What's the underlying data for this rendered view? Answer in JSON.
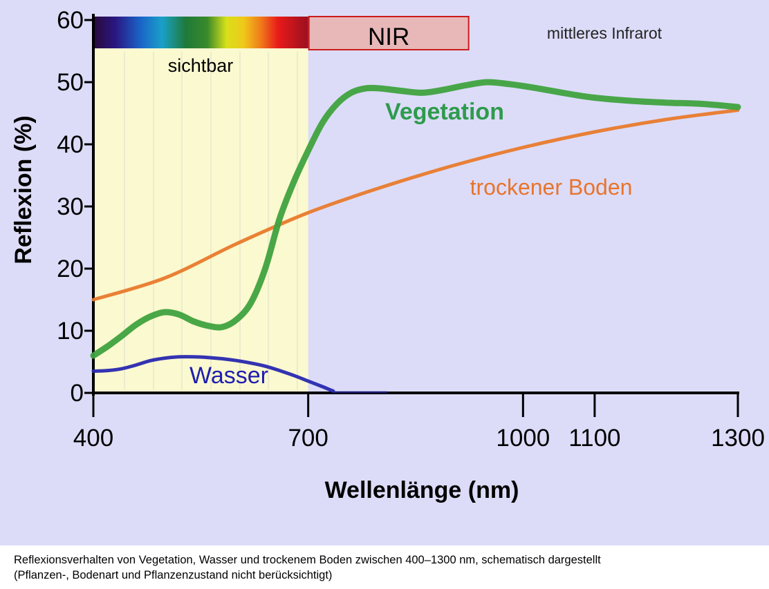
{
  "chart_data": {
    "type": "line",
    "xlabel": "Wellenlänge (nm)",
    "ylabel": "Reflexion (%)",
    "xlim": [
      400,
      1300
    ],
    "ylim": [
      0,
      60
    ],
    "x_ticks": [
      400,
      700,
      1000,
      1100,
      1300
    ],
    "x_tick_labels": [
      "400",
      "700",
      "1000",
      "1100",
      "1300"
    ],
    "y_ticks": [
      0,
      10,
      20,
      30,
      40,
      50,
      60
    ],
    "y_tick_labels": [
      "0",
      "10",
      "20",
      "30",
      "40",
      "50",
      "60"
    ],
    "grid": false,
    "bands": [
      {
        "name": "sichtbar",
        "from": 400,
        "to": 700,
        "color": "#fbf9cf"
      },
      {
        "name": "NIR",
        "from": 700,
        "to": 925,
        "color": "#e8b8b8"
      },
      {
        "name": "mittleres Infrarot",
        "from": 925,
        "to": 1300
      }
    ],
    "series": [
      {
        "name": "Vegetation",
        "color": "#3fa23f",
        "label_color": "#2e9b4d",
        "x": [
          400,
          420,
          440,
          460,
          480,
          500,
          520,
          540,
          560,
          580,
          600,
          620,
          640,
          660,
          680,
          700,
          720,
          740,
          760,
          780,
          800,
          830,
          860,
          890,
          920,
          950,
          980,
          1010,
          1040,
          1070,
          1100,
          1150,
          1200,
          1250,
          1300
        ],
        "values": [
          6,
          7.5,
          9.2,
          11,
          12.3,
          13,
          12.6,
          11.5,
          10.8,
          10.6,
          11.8,
          14.5,
          20,
          28,
          34,
          39,
          43.5,
          46.5,
          48.3,
          49,
          49,
          48.6,
          48.3,
          48.8,
          49.5,
          50,
          49.7,
          49.2,
          48.6,
          48.0,
          47.5,
          47.0,
          46.7,
          46.5,
          46
        ]
      },
      {
        "name": "trockener Boden",
        "color": "#e87a2c",
        "label_color": "#e8742c",
        "x": [
          400,
          500,
          600,
          700,
          800,
          900,
          1000,
          1100,
          1200,
          1300
        ],
        "values": [
          15,
          18.5,
          24,
          29,
          33,
          36.5,
          39.5,
          42,
          44,
          45.5
        ]
      },
      {
        "name": "Wasser",
        "color": "#2828b0",
        "label_color": "#1e1eb0",
        "x": [
          400,
          420,
          440,
          460,
          480,
          500,
          520,
          540,
          560,
          580,
          600,
          620,
          640,
          660,
          680,
          700,
          720,
          735
        ],
        "values": [
          3.5,
          3.6,
          3.9,
          4.5,
          5.2,
          5.6,
          5.8,
          5.8,
          5.7,
          5.5,
          5.2,
          4.8,
          4.3,
          3.6,
          2.8,
          1.9,
          1.0,
          0.3
        ]
      }
    ]
  },
  "caption": {
    "line1": "Reflexionsverhalten von Vegetation, Wasser und trockenem Boden zwischen 400–1300 nm, schematisch dargestellt",
    "line2": "(Pflanzen-, Bodenart und Pflanzenzustand nicht berücksichtigt)"
  }
}
